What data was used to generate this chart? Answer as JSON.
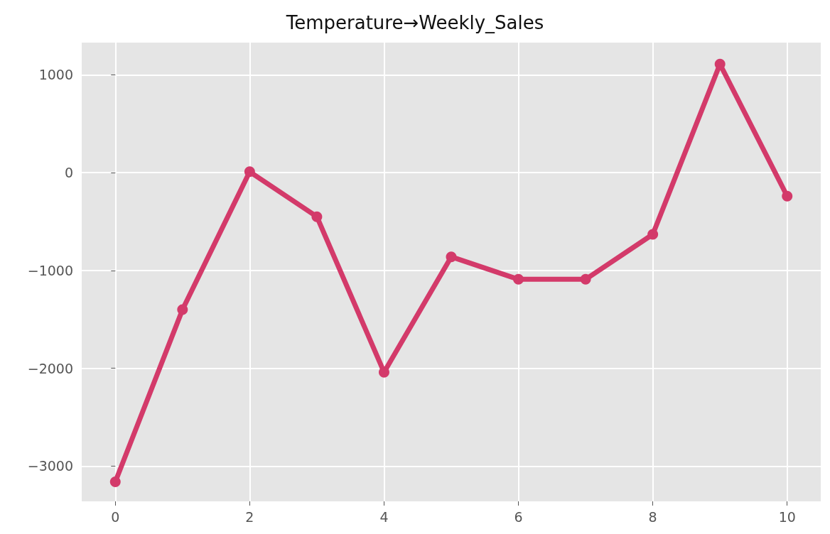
{
  "chart_data": {
    "type": "line",
    "title": "Temperature→Weekly_Sales",
    "x": [
      0,
      1,
      2,
      3,
      4,
      5,
      6,
      7,
      8,
      9,
      10
    ],
    "series": [
      {
        "color": "#d33a6a",
        "values": [
          -3160,
          -1400,
          10,
          -450,
          -2040,
          -860,
          -1090,
          -1090,
          -630,
          1110,
          -240
        ]
      }
    ],
    "xlim": [
      -0.5,
      10.5
    ],
    "xticks": [
      0,
      2,
      4,
      6,
      8,
      10
    ],
    "ylim": [
      -3360,
      1330
    ],
    "yticks": [
      -3000,
      -2000,
      -1000,
      0,
      1000
    ],
    "grid": true,
    "marker": "circle",
    "line_style": "solid"
  }
}
